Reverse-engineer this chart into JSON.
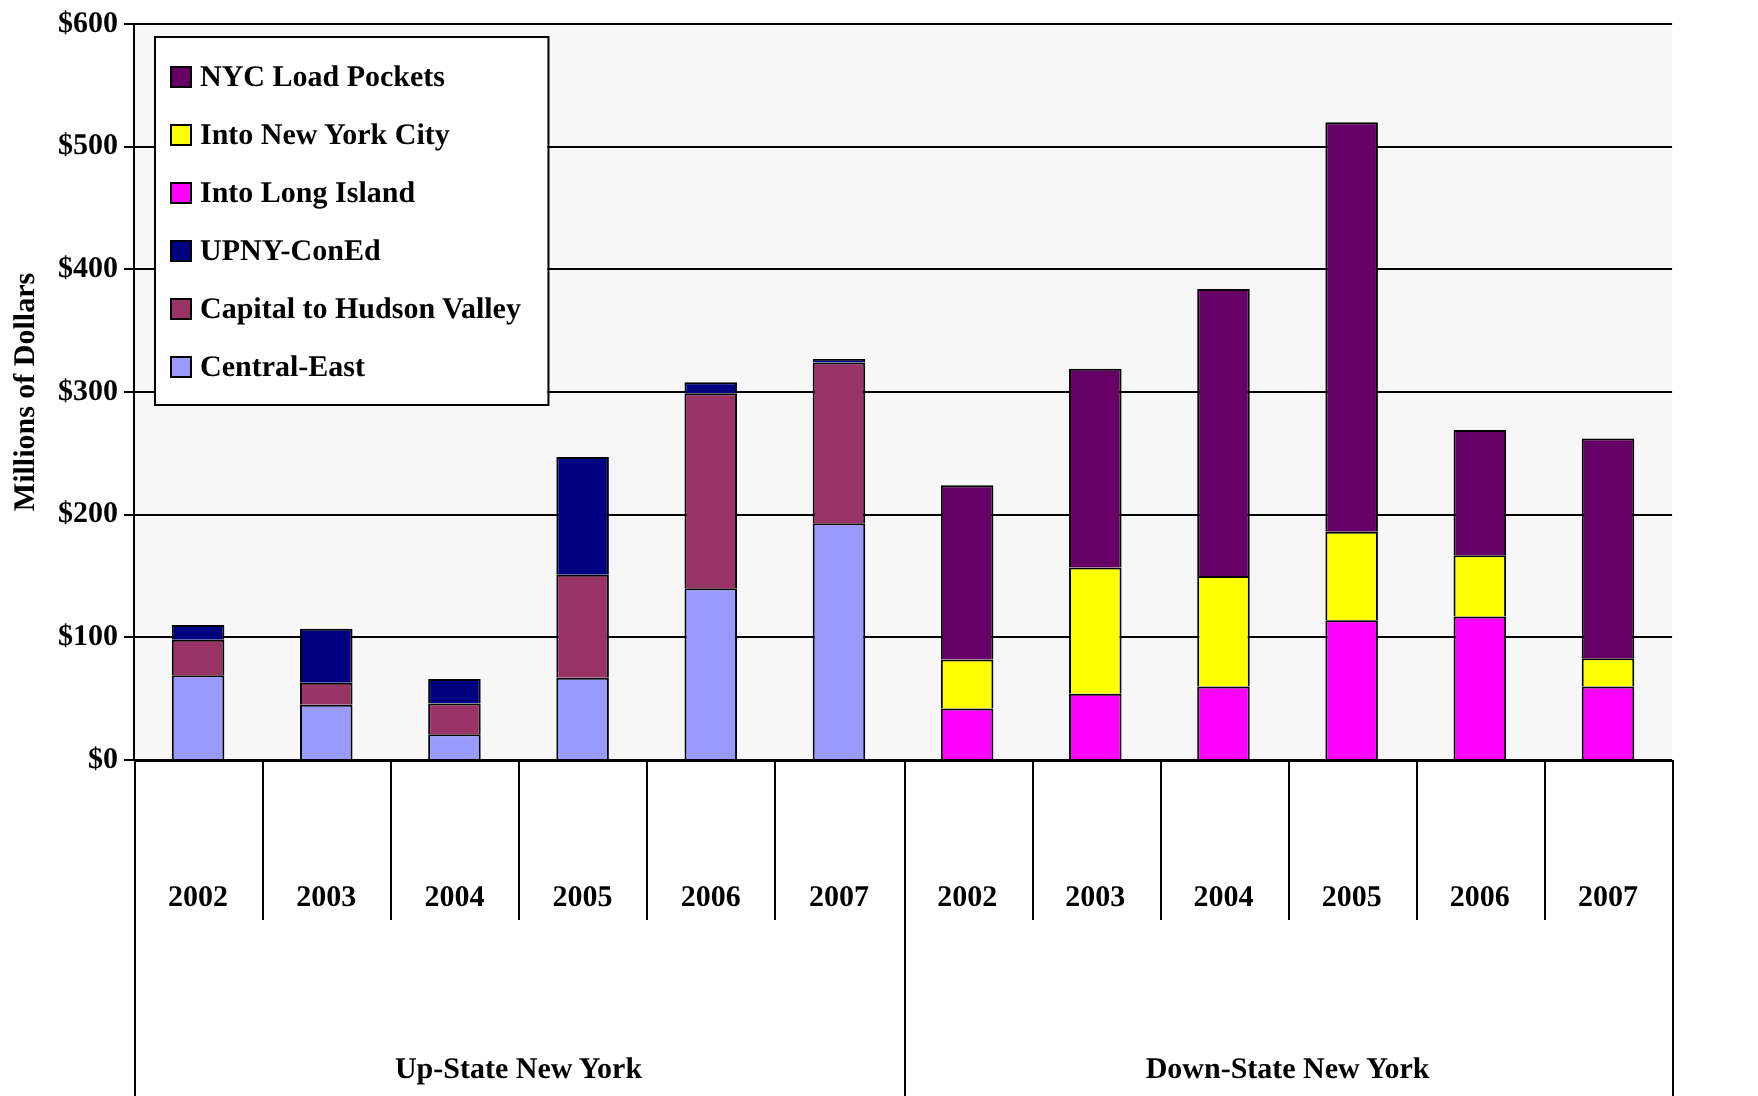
{
  "chart_data": {
    "type": "bar",
    "stacked": true,
    "ylabel": "Millions of Dollars",
    "categories": [
      "2002",
      "2003",
      "2004",
      "2005",
      "2006",
      "2007",
      "2002",
      "2003",
      "2004",
      "2005",
      "2006",
      "2007"
    ],
    "annotations": [
      "Up-State New York",
      "Down-State New York"
    ],
    "series": [
      {
        "name": "Central-East",
        "color": "#9999ff",
        "values": [
          69,
          45,
          21,
          67,
          140,
          193,
          null,
          null,
          null,
          null,
          null,
          null
        ]
      },
      {
        "name": "Capital to Hudson Valley",
        "color": "#993366",
        "values": [
          29,
          18,
          25,
          84,
          159,
          131,
          null,
          null,
          null,
          null,
          null,
          null
        ]
      },
      {
        "name": "UPNY-ConEd",
        "color": "#000080",
        "values": [
          12,
          44,
          20,
          96,
          9,
          3,
          null,
          null,
          null,
          null,
          null,
          null
        ]
      },
      {
        "name": "Into Long Island",
        "color": "#ff00ff",
        "values": [
          null,
          null,
          null,
          null,
          null,
          null,
          42,
          54,
          60,
          114,
          117,
          60
        ]
      },
      {
        "name": "Into New York City",
        "color": "#ffff00",
        "values": [
          null,
          null,
          null,
          null,
          null,
          null,
          40,
          103,
          90,
          72,
          50,
          23
        ]
      },
      {
        "name": "NYC Load Pockets",
        "color": "#660066",
        "values": [
          null,
          null,
          null,
          null,
          null,
          null,
          142,
          162,
          234,
          334,
          102,
          179
        ]
      }
    ],
    "ylim": [
      0,
      600
    ],
    "yticks": [
      {
        "value": 0,
        "label": "$0"
      },
      {
        "value": 100,
        "label": "$100"
      },
      {
        "value": 200,
        "label": "$200"
      },
      {
        "value": 300,
        "label": "$300"
      },
      {
        "value": 400,
        "label": "$400"
      },
      {
        "value": 500,
        "label": "$500"
      },
      {
        "value": 600,
        "label": "$600"
      }
    ],
    "grid": "y",
    "legend": "top left"
  }
}
